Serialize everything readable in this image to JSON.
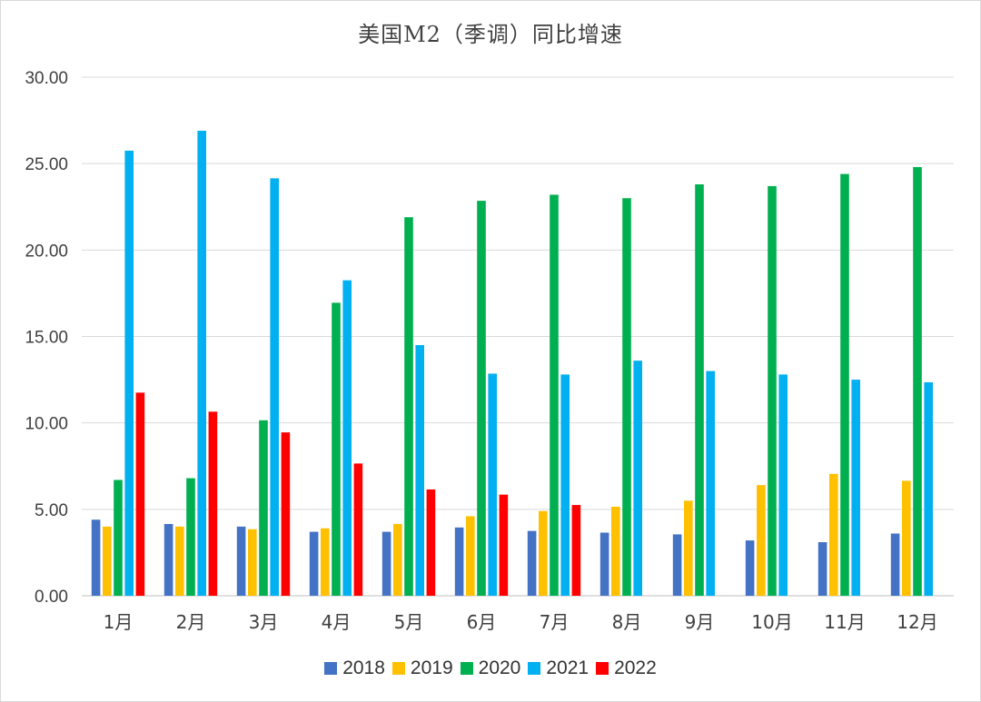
{
  "chart_data": {
    "type": "bar",
    "title": "美国M2（季调）同比增速",
    "xlabel": "",
    "ylabel": "",
    "ylim": [
      0,
      30
    ],
    "yticks": [
      "0.00",
      "5.00",
      "10.00",
      "15.00",
      "20.00",
      "25.00",
      "30.00"
    ],
    "grid": true,
    "legend_position": "bottom",
    "categories": [
      "1月",
      "2月",
      "3月",
      "4月",
      "5月",
      "6月",
      "7月",
      "8月",
      "9月",
      "10月",
      "11月",
      "12月"
    ],
    "series": [
      {
        "name": "2018",
        "color": "#4472c4",
        "values": [
          4.4,
          4.15,
          4.0,
          3.7,
          3.7,
          3.95,
          3.75,
          3.65,
          3.55,
          3.2,
          3.1,
          3.6
        ]
      },
      {
        "name": "2019",
        "color": "#ffc000",
        "values": [
          4.0,
          4.0,
          3.85,
          3.9,
          4.15,
          4.6,
          4.9,
          5.15,
          5.5,
          6.4,
          7.05,
          6.65
        ]
      },
      {
        "name": "2020",
        "color": "#00b050",
        "values": [
          6.7,
          6.8,
          10.15,
          16.95,
          21.9,
          22.85,
          23.2,
          23.0,
          23.8,
          23.7,
          24.4,
          24.8
        ]
      },
      {
        "name": "2021",
        "color": "#00b0f0",
        "values": [
          25.75,
          26.9,
          24.15,
          18.25,
          14.5,
          12.85,
          12.8,
          13.6,
          13.0,
          12.8,
          12.5,
          12.35
        ]
      },
      {
        "name": "2022",
        "color": "#ff0000",
        "values": [
          11.75,
          10.65,
          9.45,
          7.65,
          6.15,
          5.85,
          5.25,
          null,
          null,
          null,
          null,
          null
        ]
      }
    ]
  }
}
